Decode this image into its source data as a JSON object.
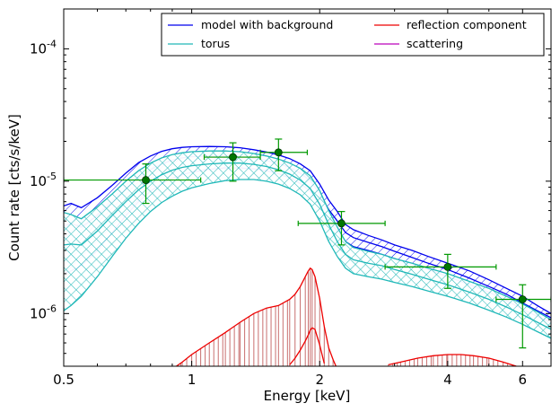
{
  "chart_data": {
    "type": "line",
    "xlabel": "Energy [keV]",
    "ylabel": "Count rate [cts/s/keV]",
    "xscale": "log",
    "yscale": "log",
    "xlim": [
      0.5,
      7.0
    ],
    "ylim": [
      4e-07,
      0.0002
    ],
    "x_ticks": [
      0.5,
      1,
      2,
      4,
      6
    ],
    "x_tick_labels": [
      "0.5",
      "1",
      "2",
      "4",
      "6"
    ],
    "y_ticks": [
      1e-06,
      1e-05,
      0.0001
    ],
    "y_tick_labels": [
      {
        "base": "10",
        "exp": "-6"
      },
      {
        "base": "10",
        "exp": "-5"
      },
      {
        "base": "10",
        "exp": "-4"
      }
    ],
    "grid": false,
    "legend_position": "top-right",
    "legend": [
      {
        "label": "model with background",
        "color": "#0000ee"
      },
      {
        "label": "reflection component",
        "color": "#ee0000"
      },
      {
        "label": "torus",
        "color": "#20b8b8"
      },
      {
        "label": "scattering",
        "color": "#bb00bb"
      }
    ],
    "data_points": {
      "color": "#009900",
      "marker_color": "#007700",
      "points": [
        {
          "x": 0.78,
          "y": 1.02e-05,
          "xerr": [
            0.5,
            1.05
          ],
          "yerr": [
            6.8e-06,
            1.35e-05
          ]
        },
        {
          "x": 1.25,
          "y": 1.52e-05,
          "xerr": [
            1.07,
            1.45
          ],
          "yerr": [
            1e-05,
            1.95e-05
          ]
        },
        {
          "x": 1.6,
          "y": 1.65e-05,
          "xerr": [
            1.45,
            1.87
          ],
          "yerr": [
            1.2e-05,
            2.08e-05
          ]
        },
        {
          "x": 2.25,
          "y": 4.8e-06,
          "xerr": [
            1.78,
            2.85
          ],
          "yerr": [
            3.3e-06,
            5.9e-06
          ]
        },
        {
          "x": 4.0,
          "y": 2.25e-06,
          "xerr": [
            2.85,
            5.2
          ],
          "yerr": [
            1.55e-06,
            2.8e-06
          ]
        },
        {
          "x": 6.0,
          "y": 1.28e-06,
          "xerr": [
            5.2,
            7.0
          ],
          "yerr": [
            5.5e-07,
            1.65e-06
          ]
        }
      ]
    },
    "series": [
      {
        "name": "model with background",
        "color": "#0000ee",
        "hatch": "diag",
        "x": [
          0.5,
          0.52,
          0.55,
          0.6,
          0.65,
          0.7,
          0.75,
          0.8,
          0.85,
          0.9,
          0.95,
          1.0,
          1.1,
          1.2,
          1.3,
          1.4,
          1.5,
          1.6,
          1.7,
          1.8,
          1.9,
          2.0,
          2.1,
          2.2,
          2.3,
          2.4,
          2.6,
          2.8,
          3.0,
          3.3,
          3.6,
          4.0,
          4.5,
          5.0,
          5.5,
          6.0,
          6.5,
          7.0
        ],
        "upper": [
          6.5e-06,
          6.8e-06,
          6.3e-06,
          7.5e-06,
          9.3e-06,
          1.15e-05,
          1.38e-05,
          1.55e-05,
          1.68e-05,
          1.76e-05,
          1.8e-05,
          1.82e-05,
          1.83e-05,
          1.82e-05,
          1.79e-05,
          1.73e-05,
          1.66e-05,
          1.58e-05,
          1.48e-05,
          1.35e-05,
          1.2e-05,
          9.5e-06,
          7.2e-06,
          5.9e-06,
          4.7e-06,
          4.3e-06,
          3.9e-06,
          3.6e-06,
          3.3e-06,
          3e-06,
          2.7e-06,
          2.4e-06,
          2.1e-06,
          1.8e-06,
          1.55e-06,
          1.35e-06,
          1.15e-06,
          1e-06
        ],
        "mid": [
          4.6e-06,
          4.8e-06,
          4.5e-06,
          5.5e-06,
          7e-06,
          8.8e-06,
          1.06e-05,
          1.22e-05,
          1.35e-05,
          1.44e-05,
          1.5e-05,
          1.53e-05,
          1.55e-05,
          1.55e-05,
          1.53e-05,
          1.49e-05,
          1.43e-05,
          1.36e-05,
          1.27e-05,
          1.15e-05,
          1.01e-05,
          8e-06,
          6.1e-06,
          5e-06,
          4.1e-06,
          3.75e-06,
          3.45e-06,
          3.2e-06,
          2.95e-06,
          2.65e-06,
          2.4e-06,
          2.15e-06,
          1.85e-06,
          1.6e-06,
          1.4e-06,
          1.2e-06,
          1.05e-06,
          9.3e-07
        ],
        "lower": [
          2e-06,
          2.1e-06,
          2.3e-06,
          3e-06,
          4.1e-06,
          5.5e-06,
          7e-06,
          8.4e-06,
          9.6e-06,
          1.05e-05,
          1.12e-05,
          1.17e-05,
          1.23e-05,
          1.26e-05,
          1.26e-05,
          1.24e-05,
          1.2e-05,
          1.14e-05,
          1.06e-05,
          9.6e-06,
          8.4e-06,
          6.6e-06,
          5e-06,
          4.2e-06,
          3.5e-06,
          3.2e-06,
          3e-06,
          2.8e-06,
          2.6e-06,
          2.35e-06,
          2.15e-06,
          1.9e-06,
          1.65e-06,
          1.45e-06,
          1.25e-06,
          1.08e-06,
          9.5e-07,
          8.5e-07
        ]
      },
      {
        "name": "torus",
        "color": "#20b8b8",
        "hatch": "cross",
        "x": [
          0.5,
          0.52,
          0.55,
          0.6,
          0.65,
          0.7,
          0.75,
          0.8,
          0.85,
          0.9,
          0.95,
          1.0,
          1.1,
          1.2,
          1.3,
          1.4,
          1.5,
          1.6,
          1.7,
          1.8,
          1.9,
          2.0,
          2.1,
          2.2,
          2.3,
          2.4,
          2.6,
          2.8,
          3.0,
          3.3,
          3.6,
          4.0,
          4.5,
          5.0,
          5.5,
          6.0,
          6.5,
          7.0
        ],
        "upper": [
          5.8e-06,
          5.6e-06,
          5.2e-06,
          6.4e-06,
          8e-06,
          1e-05,
          1.2e-05,
          1.37e-05,
          1.5e-05,
          1.59e-05,
          1.64e-05,
          1.67e-05,
          1.69e-05,
          1.69e-05,
          1.67e-05,
          1.62e-05,
          1.55e-05,
          1.47e-05,
          1.37e-05,
          1.25e-05,
          1.1e-05,
          8.5e-06,
          6e-06,
          4.5e-06,
          3.5e-06,
          3.15e-06,
          2.95e-06,
          2.8e-06,
          2.6e-06,
          2.4e-06,
          2.2e-06,
          2e-06,
          1.75e-06,
          1.55e-06,
          1.35e-06,
          1.18e-06,
          1.03e-06,
          9e-07
        ],
        "mid": [
          3.3e-06,
          3.35e-06,
          3.3e-06,
          4.2e-06,
          5.5e-06,
          7e-06,
          8.6e-06,
          1e-05,
          1.12e-05,
          1.21e-05,
          1.27e-05,
          1.31e-05,
          1.35e-05,
          1.37e-05,
          1.37e-05,
          1.34e-05,
          1.29e-05,
          1.22e-05,
          1.13e-05,
          1.02e-05,
          8.8e-06,
          6.7e-06,
          4.7e-06,
          3.5e-06,
          2.8e-06,
          2.55e-06,
          2.4e-06,
          2.3e-06,
          2.15e-06,
          1.98e-06,
          1.82e-06,
          1.65e-06,
          1.45e-06,
          1.28e-06,
          1.12e-06,
          9.8e-07,
          8.6e-07,
          7.6e-07
        ],
        "lower": [
          1.05e-06,
          1.15e-06,
          1.35e-06,
          1.9e-06,
          2.7e-06,
          3.7e-06,
          4.8e-06,
          5.9e-06,
          6.9e-06,
          7.7e-06,
          8.4e-06,
          8.9e-06,
          9.6e-06,
          1.01e-05,
          1.03e-05,
          1.03e-05,
          1e-05,
          9.5e-06,
          8.8e-06,
          7.9e-06,
          6.7e-06,
          5e-06,
          3.5e-06,
          2.7e-06,
          2.2e-06,
          2e-06,
          1.9e-06,
          1.82e-06,
          1.72e-06,
          1.6e-06,
          1.48e-06,
          1.35e-06,
          1.2e-06,
          1.06e-06,
          9.4e-07,
          8.3e-07,
          7.3e-07,
          6.5e-07
        ]
      },
      {
        "name": "reflection component",
        "color": "#ee0000",
        "x": [
          0.92,
          0.95,
          1.0,
          1.1,
          1.2,
          1.3,
          1.4,
          1.5,
          1.6,
          1.7,
          1.75,
          1.8,
          1.85,
          1.88,
          1.9,
          1.92,
          1.95,
          2.0,
          2.05,
          2.1,
          2.15,
          2.2,
          2.3,
          2.5,
          2.7,
          2.9,
          3.1,
          3.4,
          3.7,
          4.0,
          4.3,
          4.6,
          5.0,
          5.4,
          5.8,
          6.2,
          6.6,
          7.0
        ],
        "upper": [
          4e-07,
          4.3e-07,
          4.9e-07,
          6e-07,
          7.2e-07,
          8.6e-07,
          1e-06,
          1.1e-06,
          1.15e-06,
          1.28e-06,
          1.4e-06,
          1.6e-06,
          1.9e-06,
          2.1e-06,
          2.2e-06,
          2.15e-06,
          1.9e-06,
          1.3e-06,
          8e-07,
          5.5e-07,
          4.5e-07,
          3.8e-07,
          null,
          null,
          null,
          4.1e-07,
          4.3e-07,
          4.6e-07,
          4.8e-07,
          4.9e-07,
          4.9e-07,
          4.8e-07,
          4.6e-07,
          4.3e-07,
          4e-07,
          null,
          null,
          null
        ],
        "lower": [
          null,
          null,
          null,
          null,
          null,
          null,
          null,
          null,
          null,
          4.1e-07,
          4.6e-07,
          5.3e-07,
          6.2e-07,
          6.9e-07,
          7.5e-07,
          7.8e-07,
          7.6e-07,
          5.8e-07,
          4.2e-07,
          null,
          null,
          null,
          null,
          null,
          null,
          null,
          null,
          null,
          null,
          null,
          null,
          null,
          null,
          null,
          null,
          null,
          null,
          null
        ]
      },
      {
        "name": "scattering",
        "color": "#bb00bb",
        "x": [],
        "values": []
      }
    ]
  }
}
